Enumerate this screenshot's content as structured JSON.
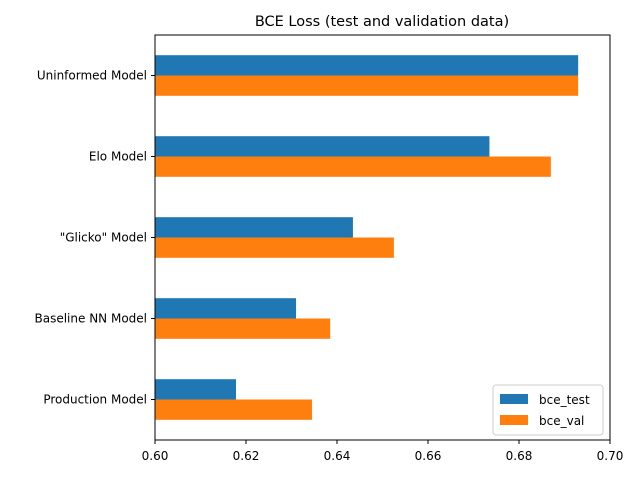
{
  "chart_data": {
    "type": "bar",
    "orientation": "horizontal",
    "title": "BCE Loss (test and validation data)",
    "xlabel": "",
    "ylabel": "",
    "categories": [
      "Uninformed Model",
      "Elo Model",
      "\"Glicko\" Model",
      "Baseline NN Model",
      "Production Model"
    ],
    "series": [
      {
        "name": "bce_test",
        "color": "#1f77b4",
        "values": [
          0.693,
          0.6735,
          0.6435,
          0.631,
          0.6178
        ]
      },
      {
        "name": "bce_val",
        "color": "#ff7f0e",
        "values": [
          0.693,
          0.687,
          0.6525,
          0.6385,
          0.6345
        ]
      }
    ],
    "xlim": [
      0.6,
      0.7
    ],
    "xticks": [
      "0.60",
      "0.62",
      "0.64",
      "0.66",
      "0.68",
      "0.70"
    ],
    "grid": false,
    "legend_position": "bottom-right"
  }
}
